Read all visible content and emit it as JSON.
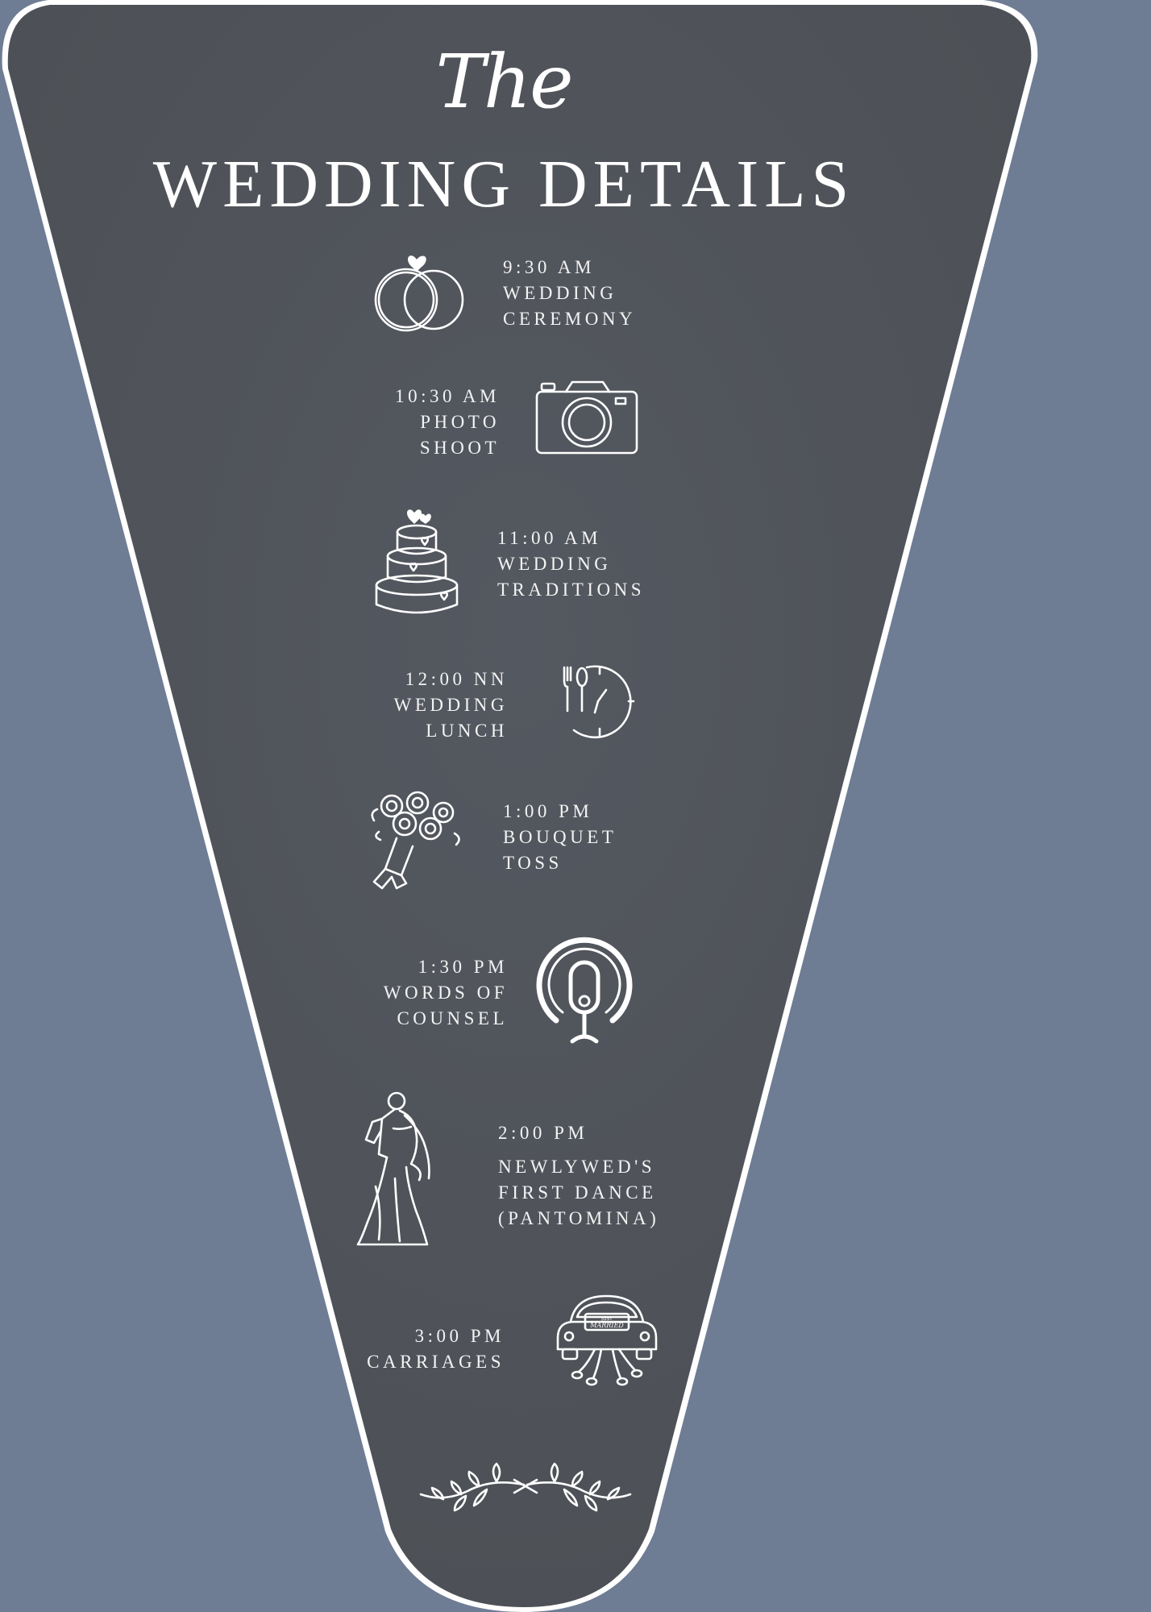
{
  "colors": {
    "background": "#6e7c94",
    "panel": "#4f5358",
    "text": "#ffffff"
  },
  "title": {
    "script": "The",
    "main": "WEDDING DETAILS"
  },
  "events": [
    {
      "time": "9:30 AM",
      "lines": [
        "WEDDING",
        "CEREMONY"
      ],
      "icon": "rings-icon"
    },
    {
      "time": "10:30 AM",
      "lines": [
        "PHOTO",
        "SHOOT"
      ],
      "icon": "camera-icon"
    },
    {
      "time": "11:00 AM",
      "lines": [
        "WEDDING",
        "TRADITIONS"
      ],
      "icon": "cake-icon"
    },
    {
      "time": "12:00 NN",
      "lines": [
        "WEDDING",
        "LUNCH"
      ],
      "icon": "lunch-clock-icon"
    },
    {
      "time": "1:00 PM",
      "lines": [
        "BOUQUET",
        "TOSS"
      ],
      "icon": "bouquet-icon"
    },
    {
      "time": "1:30 PM",
      "lines": [
        "WORDS OF",
        "COUNSEL"
      ],
      "icon": "microphone-icon"
    },
    {
      "time": "2:00 PM",
      "lines": [
        "NEWLYWED'S",
        "FIRST DANCE",
        "(PANTOMINA)"
      ],
      "icon": "dancing-couple-icon"
    },
    {
      "time": "3:00 PM",
      "lines": [
        "CARRIAGES"
      ],
      "icon": "just-married-car-icon"
    }
  ],
  "car_sign": "JUST MARRIED"
}
